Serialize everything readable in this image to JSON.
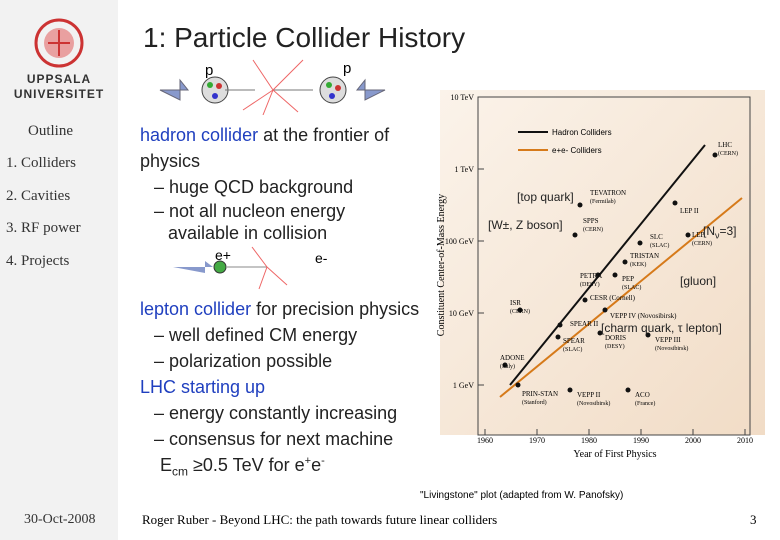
{
  "sidebar": {
    "logo_text": [
      "UPPSALA",
      "UNIVERSITET"
    ],
    "menu": [
      "Outline",
      "1. Colliders",
      "2. Cavities",
      "3. RF power",
      "4. Projects"
    ],
    "date": "30-Oct-2008"
  },
  "title": "1: Particle Collider History",
  "hadron_diagram": {
    "left": "p",
    "right": "p"
  },
  "hadron": {
    "lead": "hadron collider",
    "rest": " at the frontier of physics",
    "items": [
      "– huge QCD background",
      "– not all nucleon energy available in collision"
    ]
  },
  "lepton_diagram": {
    "left": "e+",
    "right": "e-"
  },
  "lepton": {
    "lead": "lepton collider",
    "rest": " for precision physics",
    "items": [
      "– well defined CM energy",
      "– polarization possible"
    ]
  },
  "lhc": {
    "lead": "LHC starting up",
    "items": [
      "– energy constantly increasing",
      "– consensus for next machine"
    ],
    "formula": [
      "E",
      "cm",
      " ≥0.5 TeV for e",
      "+",
      "e",
      "-"
    ]
  },
  "plot": {
    "y_label": "Constituent Center-of-Mass Energy",
    "x_label": "Year of First Physics",
    "y_ticks": [
      "1 GeV",
      "10 GeV",
      "100 GeV",
      "1 TeV",
      "10 TeV"
    ],
    "x_ticks": [
      "1960",
      "1970",
      "1980",
      "1990",
      "2000",
      "2010"
    ],
    "legend": [
      "Hadron Colliders",
      "e+e- Colliders"
    ],
    "colliders": [
      [
        "LHC",
        "(CERN)"
      ],
      [
        "TEVATRON",
        "(Fermilab)"
      ],
      [
        "SPPS",
        "(CERN)"
      ],
      [
        "LEP II",
        ""
      ],
      [
        "SLC",
        "(SLAC)"
      ],
      [
        "LEP",
        "(CERN)"
      ],
      [
        "TRISTAN",
        "(KEK)"
      ],
      [
        "PETRA",
        "(DESY)"
      ],
      [
        "PEP",
        "(SLAC)"
      ],
      [
        "CESR (Cornell)",
        ""
      ],
      [
        "ISR",
        "(CERN)"
      ],
      [
        "SPEAR II",
        ""
      ],
      [
        "VEPP IV (Novosibirsk)",
        ""
      ],
      [
        "SPEAR",
        "(SLAC)"
      ],
      [
        "DORIS",
        "(DESY)"
      ],
      [
        "VEPP III",
        "(Novosibirsk)"
      ],
      [
        "ADONE",
        "(Italy)"
      ],
      [
        "PRIN-STAN",
        "(Stanford)"
      ],
      [
        "VEPP II",
        "(Novosibirsk)"
      ],
      [
        "ACO",
        "(France)"
      ]
    ],
    "annotations": [
      "[top quark]",
      "[W±, Z boson]",
      "[N",
      "ν",
      "=3]",
      "[gluon]",
      "[charm quark, τ lepton]"
    ],
    "caption": "\"Livingstone\" plot  (adapted from W. Panofsky)"
  },
  "footer": {
    "text": "Roger Ruber - Beyond LHC: the path towards future linear colliders",
    "page": "3"
  }
}
